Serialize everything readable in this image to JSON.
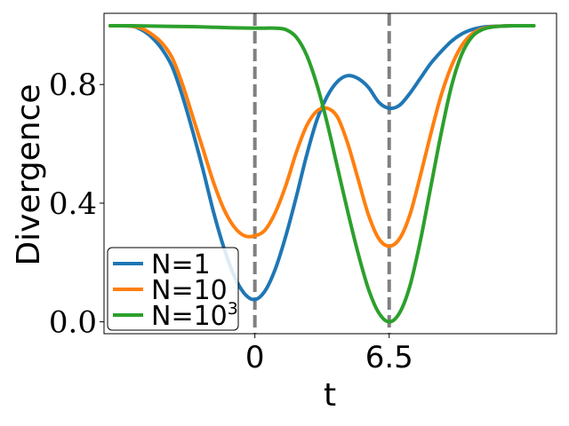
{
  "chart_data": {
    "type": "line",
    "title": "",
    "xlabel": "t",
    "ylabel": "Divergence",
    "xlim": [
      -7.3,
      14.6
    ],
    "ylim": [
      -0.04,
      1.04
    ],
    "xticks": [
      0,
      6.5
    ],
    "xtick_labels": [
      "0",
      "6.5"
    ],
    "yticks": [
      0.0,
      0.4,
      0.8
    ],
    "ytick_labels": [
      "0.0",
      "0.4",
      "0.8"
    ],
    "vlines": [
      0,
      6.5
    ],
    "grid": false,
    "legend_position": "lower-left",
    "series": [
      {
        "name": "N=1",
        "color": "#1f77b4",
        "x": [
          -7,
          -6,
          -5.5,
          -5,
          -4.5,
          -4,
          -3.5,
          -3,
          -2.5,
          -2,
          -1.5,
          -1,
          -0.5,
          0,
          0.5,
          1,
          1.5,
          2,
          2.5,
          3,
          3.5,
          4,
          4.5,
          5,
          5.5,
          6,
          6.5,
          7,
          7.5,
          8,
          8.5,
          9,
          9.5,
          10,
          10.5,
          11,
          11.5,
          12,
          12.5,
          13.5
        ],
        "y": [
          0.998,
          0.997,
          0.985,
          0.96,
          0.92,
          0.86,
          0.76,
          0.64,
          0.51,
          0.37,
          0.25,
          0.155,
          0.095,
          0.075,
          0.105,
          0.18,
          0.29,
          0.42,
          0.56,
          0.68,
          0.76,
          0.81,
          0.83,
          0.82,
          0.79,
          0.74,
          0.72,
          0.73,
          0.77,
          0.82,
          0.87,
          0.91,
          0.945,
          0.97,
          0.985,
          0.993,
          0.996,
          0.997,
          0.998,
          0.998
        ]
      },
      {
        "name": "N=10",
        "color": "#ff7f0e",
        "x": [
          -7,
          -6,
          -5.5,
          -5,
          -4.5,
          -4,
          -3.5,
          -3,
          -2.5,
          -2,
          -1.5,
          -1,
          -0.5,
          0,
          0.5,
          1,
          1.5,
          2,
          2.5,
          3,
          3.5,
          4,
          4.5,
          5,
          5.5,
          6,
          6.5,
          7,
          7.5,
          8,
          8.5,
          9,
          9.5,
          10,
          10.5,
          11,
          11.5,
          12,
          12.5,
          13.5
        ],
        "y": [
          0.998,
          0.997,
          0.99,
          0.97,
          0.94,
          0.89,
          0.8,
          0.69,
          0.58,
          0.47,
          0.38,
          0.32,
          0.29,
          0.29,
          0.31,
          0.37,
          0.46,
          0.57,
          0.66,
          0.71,
          0.72,
          0.69,
          0.6,
          0.48,
          0.36,
          0.28,
          0.255,
          0.28,
          0.36,
          0.49,
          0.63,
          0.76,
          0.86,
          0.93,
          0.97,
          0.988,
          0.995,
          0.997,
          0.998,
          0.998
        ]
      },
      {
        "name": "N=10³",
        "color": "#2ca02c",
        "x": [
          -7,
          -6,
          -5,
          -4,
          -3,
          -2,
          -1,
          0,
          0.5,
          1,
          1.5,
          2,
          2.5,
          3,
          3.5,
          4,
          4.5,
          5,
          5.5,
          6,
          6.5,
          7,
          7.5,
          8,
          8.5,
          9,
          9.5,
          10,
          10.5,
          11,
          11.5,
          12,
          12.5,
          13.5
        ],
        "y": [
          0.998,
          0.998,
          0.997,
          0.996,
          0.995,
          0.993,
          0.991,
          0.99,
          0.99,
          0.99,
          0.985,
          0.96,
          0.9,
          0.8,
          0.67,
          0.52,
          0.37,
          0.23,
          0.11,
          0.03,
          0.0,
          0.03,
          0.12,
          0.27,
          0.45,
          0.63,
          0.79,
          0.9,
          0.96,
          0.985,
          0.994,
          0.997,
          0.998,
          0.998
        ]
      }
    ],
    "legend": [
      {
        "label": "N=1",
        "base": "N=1",
        "sup": "",
        "color": "#1f77b4"
      },
      {
        "label": "N=10",
        "base": "N=10",
        "sup": "",
        "color": "#ff7f0e"
      },
      {
        "label": "N=10³",
        "base": "N=10",
        "sup": "3",
        "color": "#2ca02c"
      }
    ]
  }
}
